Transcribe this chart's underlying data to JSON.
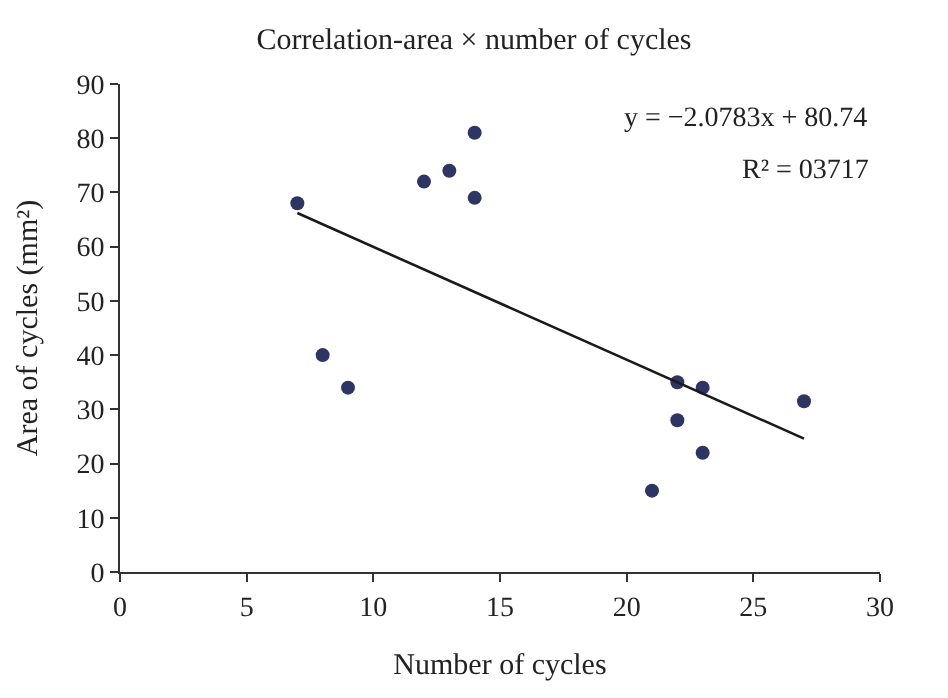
{
  "chart_data": {
    "type": "scatter",
    "title": "Correlation-area × number of cycles",
    "xlabel": "Number of cycles",
    "ylabel": "Area of cycles (mm²)",
    "annotations": [
      "y = −2.0783x + 80.74",
      "R² = 03717"
    ],
    "xlim": [
      0,
      30
    ],
    "xticks": [
      0,
      5,
      10,
      15,
      20,
      25,
      30
    ],
    "ylim": [
      0,
      90
    ],
    "yticks": [
      0,
      10,
      20,
      30,
      40,
      50,
      60,
      70,
      80,
      90
    ],
    "series": [
      {
        "color": "#2f3563",
        "marker": "circle",
        "x": [
          7,
          8,
          9,
          12,
          13,
          14,
          14,
          21,
          22,
          22,
          23,
          23,
          27
        ],
        "values": [
          68,
          40,
          34,
          72,
          74,
          81,
          69,
          15,
          35,
          28,
          34,
          22,
          31.5
        ]
      },
      {
        "type": "line",
        "color": "#1a1a1a",
        "line_style": "solid",
        "x": [
          7,
          27
        ],
        "values": [
          66.2,
          24.6
        ]
      }
    ]
  }
}
